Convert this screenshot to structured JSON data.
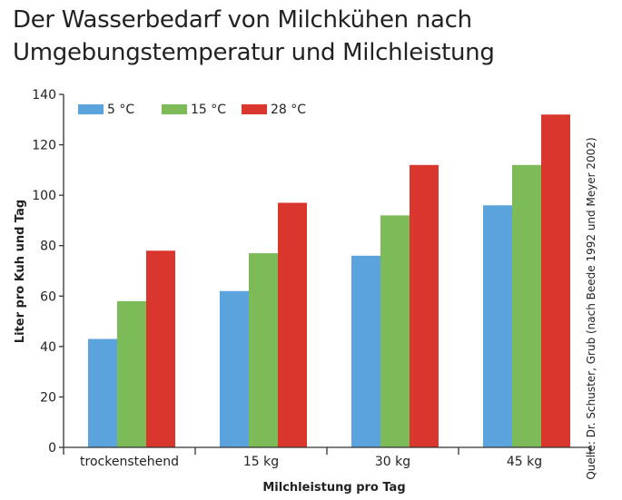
{
  "title_lines": [
    "Der Wasserbedarf von Milchkühen nach",
    "Umgebungstemperatur und Milchleistung"
  ],
  "source": "Quelle: Dr. Schuster, Grub (nach Beede 1992 und Meyer 2002)",
  "chart_data": {
    "type": "bar",
    "title": "Der Wasserbedarf von Milchkühen nach Umgebungstemperatur und Milchleistung",
    "xlabel": "Milchleistung pro Tag",
    "ylabel": "Liter pro Kuh und Tag",
    "categories": [
      "trockenstehend",
      "15 kg",
      "30 kg",
      "45 kg"
    ],
    "ylim": [
      0,
      140
    ],
    "yticks": [
      0,
      20,
      40,
      60,
      80,
      100,
      120,
      140
    ],
    "grid": false,
    "legend_position": "top-left",
    "series": [
      {
        "name": "5 °C",
        "color": "#5ba3dc",
        "values": [
          43,
          62,
          76,
          96
        ]
      },
      {
        "name": "15 °C",
        "color": "#7dbb58",
        "values": [
          58,
          77,
          92,
          112
        ]
      },
      {
        "name": "28 °C",
        "color": "#d9362d",
        "values": [
          78,
          97,
          112,
          132
        ]
      }
    ]
  }
}
